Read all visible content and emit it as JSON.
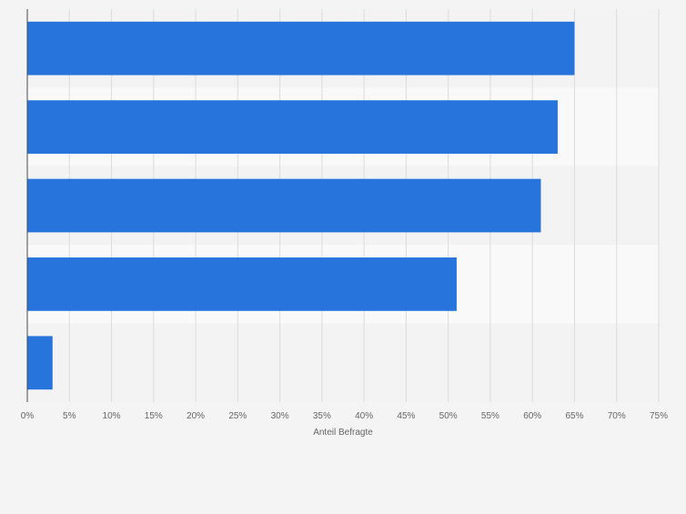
{
  "chart_data": {
    "type": "bar",
    "orientation": "horizontal",
    "title": "",
    "categories": [
      "",
      "",
      "",
      "",
      ""
    ],
    "values": [
      65,
      63,
      61,
      51,
      3
    ],
    "xlabel": "Anteil Befragte",
    "ylabel": "",
    "xlim": [
      0,
      75
    ],
    "xticks": [
      0,
      5,
      10,
      15,
      20,
      25,
      30,
      35,
      40,
      45,
      50,
      55,
      60,
      65,
      70,
      75
    ],
    "tick_format": "%",
    "grid": "vertical",
    "legend": "none",
    "colors": {
      "bar": "#2775dc",
      "band_dark": "#f3f3f3",
      "band_light": "#f9f9f9",
      "grid": "#dcdcdc",
      "axis": "#4a4a4a",
      "text": "#666666"
    }
  }
}
